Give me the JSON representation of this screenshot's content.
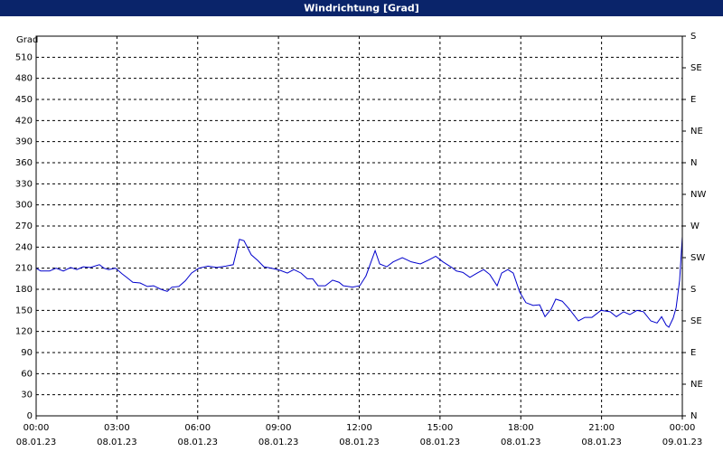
{
  "chart_data": {
    "type": "line",
    "title": "Windrichtung [Grad]",
    "y_label": "Grad",
    "x": [
      0,
      0.17,
      0.5,
      0.74,
      1.01,
      1.28,
      1.51,
      1.75,
      2.01,
      2.35,
      2.52,
      2.69,
      2.95,
      3.19,
      3.36,
      3.59,
      3.86,
      4.13,
      4.36,
      4.63,
      4.87,
      5.04,
      5.3,
      5.54,
      5.77,
      6.04,
      6.38,
      6.71,
      7.05,
      7.32,
      7.55,
      7.72,
      7.99,
      8.23,
      8.46,
      8.73,
      9.06,
      9.33,
      9.57,
      9.84,
      10.07,
      10.27,
      10.47,
      10.74,
      11.01,
      11.25,
      11.41,
      11.75,
      12.02,
      12.25,
      12.59,
      12.76,
      13.02,
      13.26,
      13.6,
      13.93,
      14.27,
      14.6,
      14.84,
      15.11,
      15.44,
      15.61,
      15.85,
      16.11,
      16.38,
      16.62,
      16.85,
      17.12,
      17.29,
      17.52,
      17.72,
      17.96,
      18.19,
      18.46,
      18.7,
      18.9,
      19.13,
      19.3,
      19.54,
      19.8,
      20.14,
      20.38,
      20.64,
      20.98,
      21.32,
      21.55,
      21.82,
      22.05,
      22.32,
      22.56,
      22.83,
      23.06,
      23.23,
      23.4,
      23.5,
      23.66,
      23.77,
      23.9,
      24
    ],
    "values": [
      210,
      206,
      206,
      210,
      206,
      211,
      208,
      212,
      211,
      215,
      210,
      208,
      210,
      202,
      197,
      190,
      189,
      184,
      185,
      180,
      177,
      183,
      184,
      192,
      203,
      210,
      213,
      211,
      213,
      215,
      251,
      249,
      229,
      221,
      212,
      210,
      207,
      203,
      208,
      203,
      195,
      195,
      185,
      185,
      193,
      190,
      185,
      183,
      185,
      199,
      235,
      216,
      212,
      219,
      225,
      219,
      216,
      222,
      227,
      219,
      211,
      206,
      204,
      197,
      203,
      208,
      201,
      185,
      203,
      208,
      203,
      176,
      161,
      157,
      158,
      141,
      152,
      166,
      163,
      152,
      135,
      140,
      140,
      150,
      148,
      141,
      148,
      144,
      150,
      148,
      135,
      132,
      141,
      129,
      126,
      139,
      154,
      193,
      255
    ],
    "color": "#0000cc",
    "xlim": [
      0,
      24
    ],
    "xticks": [
      {
        "value": 0,
        "label": "00:00",
        "date": "08.01.23"
      },
      {
        "value": 3,
        "label": "03:00",
        "date": "08.01.23"
      },
      {
        "value": 6,
        "label": "06:00",
        "date": "08.01.23"
      },
      {
        "value": 9,
        "label": "09:00",
        "date": "08.01.23"
      },
      {
        "value": 12,
        "label": "12:00",
        "date": "08.01.23"
      },
      {
        "value": 15,
        "label": "15:00",
        "date": "08.01.23"
      },
      {
        "value": 18,
        "label": "18:00",
        "date": "08.01.23"
      },
      {
        "value": 21,
        "label": "21:00",
        "date": "08.01.23"
      },
      {
        "value": 24,
        "label": "00:00",
        "date": "09.01.23"
      }
    ],
    "ylim": [
      0,
      540
    ],
    "yticks": [
      0,
      30,
      60,
      90,
      120,
      150,
      180,
      210,
      240,
      270,
      300,
      330,
      360,
      390,
      420,
      450,
      480,
      510
    ],
    "y2lim": [
      0,
      540
    ],
    "y2ticks": [
      {
        "value": 0,
        "label": "N"
      },
      {
        "value": 45,
        "label": "NE"
      },
      {
        "value": 90,
        "label": "E"
      },
      {
        "value": 135,
        "label": "SE"
      },
      {
        "value": 180,
        "label": "S"
      },
      {
        "value": 225,
        "label": "SW"
      },
      {
        "value": 270,
        "label": "W"
      },
      {
        "value": 315,
        "label": "NW"
      },
      {
        "value": 360,
        "label": "N"
      },
      {
        "value": 405,
        "label": "NE"
      },
      {
        "value": 450,
        "label": "E"
      },
      {
        "value": 495,
        "label": "SE"
      },
      {
        "value": 540,
        "label": "S"
      }
    ],
    "grid": true
  }
}
